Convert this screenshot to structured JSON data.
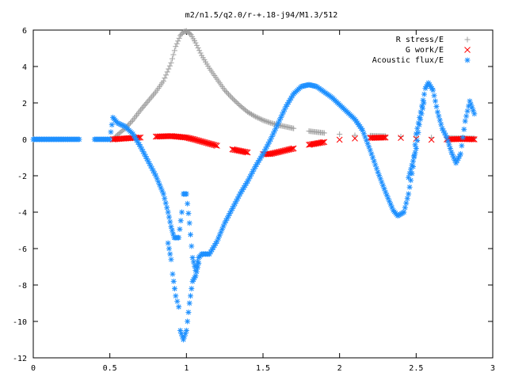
{
  "chart_data": {
    "type": "scatter",
    "title": "m2/n1.5/q2.0/r-+.18-j94/M1.3/512",
    "xlabel": "",
    "ylabel": "",
    "xlim": [
      0,
      3
    ],
    "ylim": [
      -12,
      6
    ],
    "x_ticks": [
      0,
      0.5,
      1,
      1.5,
      2,
      2.5,
      3
    ],
    "x_tick_labels": [
      "0",
      "0.5",
      "1",
      "1.5",
      "2",
      "2.5",
      "3"
    ],
    "y_ticks": [
      -12,
      -10,
      -8,
      -6,
      -4,
      -2,
      0,
      2,
      4,
      6
    ],
    "y_tick_labels": [
      "-12",
      "-10",
      "-8",
      "-6",
      "-4",
      "-2",
      "0",
      "2",
      "4",
      "6"
    ],
    "grid": false,
    "legend_position": "top-right",
    "series": [
      {
        "name": "R stress/E",
        "marker": "+",
        "color": "#a0a0a0",
        "points": [
          [
            0.52,
            0
          ],
          [
            0.55,
            0.25
          ],
          [
            0.6,
            0.6
          ],
          [
            0.65,
            1.05
          ],
          [
            0.7,
            1.6
          ],
          [
            0.75,
            2.1
          ],
          [
            0.8,
            2.6
          ],
          [
            0.85,
            3.2
          ],
          [
            0.9,
            4.2
          ],
          [
            0.93,
            5.1
          ],
          [
            0.96,
            5.7
          ],
          [
            0.98,
            5.9
          ],
          [
            1.0,
            5.95
          ],
          [
            1.03,
            5.75
          ],
          [
            1.06,
            5.3
          ],
          [
            1.1,
            4.6
          ],
          [
            1.15,
            3.9
          ],
          [
            1.2,
            3.3
          ],
          [
            1.25,
            2.7
          ],
          [
            1.3,
            2.25
          ],
          [
            1.35,
            1.85
          ],
          [
            1.4,
            1.5
          ],
          [
            1.45,
            1.25
          ],
          [
            1.5,
            1.05
          ],
          [
            1.55,
            0.9
          ],
          [
            1.6,
            0.78
          ],
          [
            1.7,
            0.6
          ],
          [
            1.8,
            0.45
          ],
          [
            1.9,
            0.35
          ],
          [
            2.0,
            0.28
          ],
          [
            2.1,
            0.22
          ],
          [
            2.2,
            0.2
          ],
          [
            2.3,
            0.18
          ],
          [
            2.4,
            0.15
          ],
          [
            2.5,
            0.12
          ],
          [
            2.6,
            0.1
          ],
          [
            2.7,
            0.08
          ],
          [
            2.8,
            0.06
          ],
          [
            2.88,
            0.05
          ]
        ]
      },
      {
        "name": "G work/E",
        "marker": "x",
        "color": "#ff0000",
        "points": [
          [
            0.52,
            0
          ],
          [
            0.6,
            0.05
          ],
          [
            0.7,
            0.1
          ],
          [
            0.8,
            0.15
          ],
          [
            0.9,
            0.18
          ],
          [
            1.0,
            0.1
          ],
          [
            1.05,
            0.0
          ],
          [
            1.1,
            -0.12
          ],
          [
            1.2,
            -0.35
          ],
          [
            1.3,
            -0.55
          ],
          [
            1.4,
            -0.72
          ],
          [
            1.5,
            -0.82
          ],
          [
            1.55,
            -0.8
          ],
          [
            1.6,
            -0.7
          ],
          [
            1.7,
            -0.5
          ],
          [
            1.8,
            -0.3
          ],
          [
            1.9,
            -0.15
          ],
          [
            2.0,
            -0.02
          ],
          [
            2.1,
            0.05
          ],
          [
            2.2,
            0.08
          ],
          [
            2.3,
            0.1
          ],
          [
            2.4,
            0.08
          ],
          [
            2.5,
            0.03
          ],
          [
            2.6,
            -0.02
          ],
          [
            2.7,
            0.0
          ],
          [
            2.8,
            0.02
          ],
          [
            2.88,
            0.0
          ]
        ]
      },
      {
        "name": "Acoustic flux/E",
        "marker": "*",
        "color": "#1e90ff",
        "points": [
          [
            0.0,
            0
          ],
          [
            0.1,
            0
          ],
          [
            0.2,
            0
          ],
          [
            0.3,
            0
          ],
          [
            0.4,
            0
          ],
          [
            0.5,
            0
          ],
          [
            0.52,
            1.2
          ],
          [
            0.55,
            0.9
          ],
          [
            0.6,
            0.7
          ],
          [
            0.65,
            0.3
          ],
          [
            0.7,
            -0.4
          ],
          [
            0.75,
            -1.2
          ],
          [
            0.8,
            -2.0
          ],
          [
            0.85,
            -3.0
          ],
          [
            0.88,
            -4.0
          ],
          [
            0.9,
            -4.8
          ],
          [
            0.92,
            -5.4
          ],
          [
            0.95,
            -5.4
          ],
          [
            0.97,
            -4.0
          ],
          [
            0.98,
            -3.0
          ],
          [
            1.0,
            -3.0
          ],
          [
            1.02,
            -4.6
          ],
          [
            1.04,
            -6.5
          ],
          [
            1.06,
            -7.2
          ],
          [
            1.08,
            -6.5
          ],
          [
            1.1,
            -6.3
          ],
          [
            1.15,
            -6.3
          ],
          [
            1.2,
            -5.6
          ],
          [
            1.25,
            -4.6
          ],
          [
            1.3,
            -3.8
          ],
          [
            1.35,
            -3.0
          ],
          [
            1.4,
            -2.3
          ],
          [
            1.45,
            -1.5
          ],
          [
            1.5,
            -0.8
          ],
          [
            1.55,
            0.0
          ],
          [
            1.6,
            0.9
          ],
          [
            1.65,
            1.8
          ],
          [
            1.7,
            2.5
          ],
          [
            1.75,
            2.9
          ],
          [
            1.8,
            3.0
          ],
          [
            1.85,
            2.9
          ],
          [
            1.9,
            2.6
          ],
          [
            1.95,
            2.3
          ],
          [
            2.0,
            1.9
          ],
          [
            2.05,
            1.5
          ],
          [
            2.1,
            1.1
          ],
          [
            2.15,
            0.5
          ],
          [
            2.2,
            -0.6
          ],
          [
            2.25,
            -1.8
          ],
          [
            2.3,
            -2.9
          ],
          [
            2.35,
            -3.9
          ],
          [
            2.38,
            -4.2
          ],
          [
            2.42,
            -4.0
          ],
          [
            2.45,
            -3.0
          ],
          [
            2.48,
            -1.5
          ],
          [
            2.5,
            0.3
          ],
          [
            2.53,
            1.5
          ],
          [
            2.56,
            2.8
          ],
          [
            2.58,
            3.1
          ],
          [
            2.61,
            2.7
          ],
          [
            2.64,
            1.5
          ],
          [
            2.67,
            0.6
          ],
          [
            2.7,
            0.1
          ],
          [
            2.73,
            -0.7
          ],
          [
            2.76,
            -1.3
          ],
          [
            2.79,
            -0.8
          ],
          [
            2.82,
            1.0
          ],
          [
            2.85,
            2.1
          ],
          [
            2.88,
            1.4
          ],
          [
            0.88,
            -5.7
          ],
          [
            0.9,
            -6.6
          ],
          [
            0.91,
            -7.4
          ],
          [
            0.93,
            -8.6
          ],
          [
            0.95,
            -9.2
          ],
          [
            0.96,
            -10.5
          ],
          [
            0.98,
            -11.0
          ],
          [
            1.0,
            -10.5
          ],
          [
            1.02,
            -9.0
          ],
          [
            1.04,
            -7.8
          ],
          [
            1.06,
            -7.5
          ],
          [
            1.08,
            -6.8
          ],
          [
            2.45,
            -2.1
          ],
          [
            2.48,
            -1.2
          ],
          [
            2.5,
            -0.5
          ],
          [
            2.52,
            0.8
          ],
          [
            2.55,
            2.0
          ]
        ]
      }
    ]
  }
}
